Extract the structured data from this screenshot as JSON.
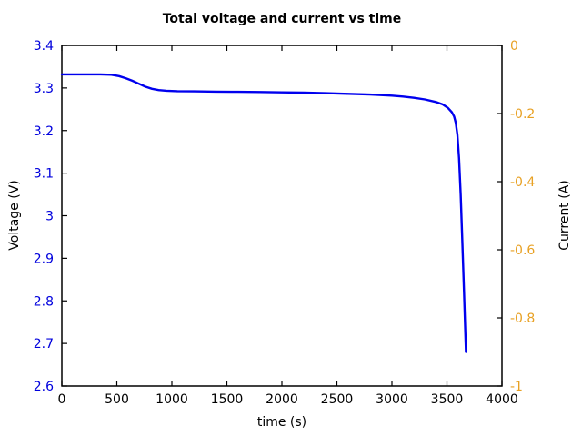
{
  "title": "Total voltage and current vs time",
  "background_color": "#ffffff",
  "frame_color": "#000000",
  "axes": {
    "x": {
      "label": "time (s)",
      "min": 0,
      "max": 4000,
      "tick_values": [
        0,
        500,
        1000,
        1500,
        2000,
        2500,
        3000,
        3500,
        4000
      ],
      "tick_labels": [
        "0",
        "500",
        "1000",
        "1500",
        "2000",
        "2500",
        "3000",
        "3500",
        "4000"
      ],
      "tick_label_color": "#000000"
    },
    "y_left": {
      "label": "Voltage (V)",
      "min": 2.6,
      "max": 3.4,
      "tick_values": [
        2.6,
        2.7,
        2.8,
        2.9,
        3.0,
        3.1,
        3.2,
        3.3,
        3.4
      ],
      "tick_labels": [
        "2.6",
        "2.7",
        "2.8",
        "2.9",
        "3",
        "3.1",
        "3.2",
        "3.3",
        "3.4"
      ],
      "tick_label_color": "#0000dd"
    },
    "y_right": {
      "label": "Current (A)",
      "min": -1,
      "max": 0,
      "tick_values": [
        0,
        -0.2,
        -0.4,
        -0.6,
        -0.8,
        -1
      ],
      "tick_labels": [
        "0",
        "-0.2",
        "-0.4",
        "-0.6",
        "-0.8",
        "-1"
      ],
      "tick_label_color": "#e8a124"
    }
  },
  "chart_data": {
    "type": "line",
    "title": "Total voltage and current vs time",
    "xlabel": "time (s)",
    "ylabel_left": "Voltage (V)",
    "ylabel_right": "Current (A)",
    "xlim": [
      0,
      4000
    ],
    "ylim_left": [
      2.6,
      3.4
    ],
    "ylim_right": [
      -1,
      0
    ],
    "grid": false,
    "legend": false,
    "series": [
      {
        "name": "Total voltage",
        "axis": "left",
        "color": "#0000ee",
        "line_width": 2.4,
        "points": [
          [
            0,
            3.332
          ],
          [
            200,
            3.332
          ],
          [
            350,
            3.332
          ],
          [
            450,
            3.331
          ],
          [
            520,
            3.328
          ],
          [
            580,
            3.323
          ],
          [
            640,
            3.317
          ],
          [
            700,
            3.31
          ],
          [
            760,
            3.303
          ],
          [
            820,
            3.298
          ],
          [
            880,
            3.295
          ],
          [
            950,
            3.2935
          ],
          [
            1050,
            3.2925
          ],
          [
            1200,
            3.292
          ],
          [
            1400,
            3.2915
          ],
          [
            1600,
            3.291
          ],
          [
            1800,
            3.2905
          ],
          [
            2000,
            3.2898
          ],
          [
            2200,
            3.289
          ],
          [
            2400,
            3.2878
          ],
          [
            2600,
            3.2863
          ],
          [
            2800,
            3.2845
          ],
          [
            3000,
            3.282
          ],
          [
            3100,
            3.28
          ],
          [
            3200,
            3.277
          ],
          [
            3300,
            3.273
          ],
          [
            3400,
            3.267
          ],
          [
            3460,
            3.2615
          ],
          [
            3510,
            3.253
          ],
          [
            3545,
            3.243
          ],
          [
            3565,
            3.233
          ],
          [
            3580,
            3.218
          ],
          [
            3595,
            3.19
          ],
          [
            3610,
            3.135
          ],
          [
            3625,
            3.05
          ],
          [
            3640,
            2.94
          ],
          [
            3655,
            2.82
          ],
          [
            3665,
            2.74
          ],
          [
            3673,
            2.68
          ]
        ]
      }
    ]
  }
}
